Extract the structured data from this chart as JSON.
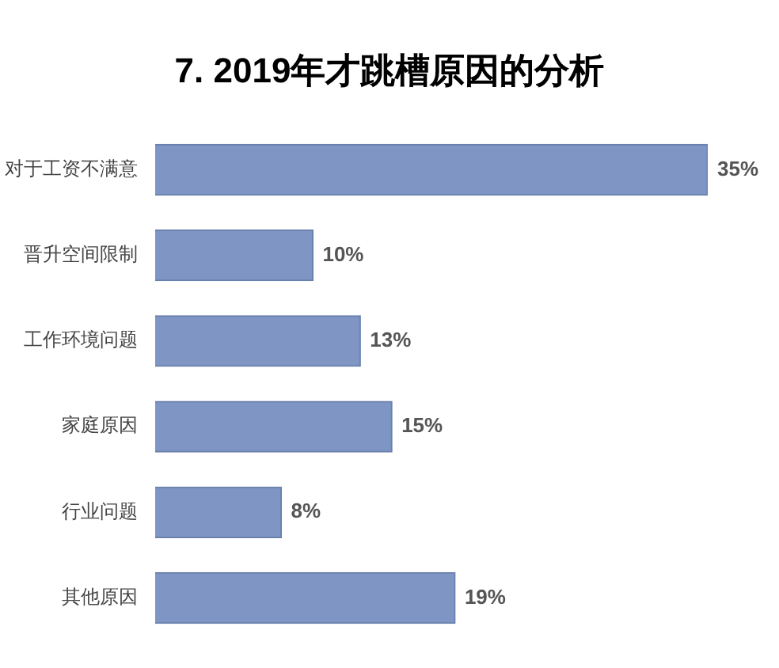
{
  "chart_data": {
    "type": "bar",
    "orientation": "horizontal",
    "title": "7. 2019年才跳槽原因的分析",
    "categories": [
      "对于工资不满意",
      "晋升空间限制",
      "工作环境问题",
      "家庭原因",
      "行业问题",
      "其他原因"
    ],
    "values": [
      35,
      10,
      13,
      15,
      8,
      19
    ],
    "value_labels": [
      "35%",
      "10%",
      "13%",
      "15%",
      "8%",
      "19%"
    ],
    "color": "#7f95c3"
  }
}
